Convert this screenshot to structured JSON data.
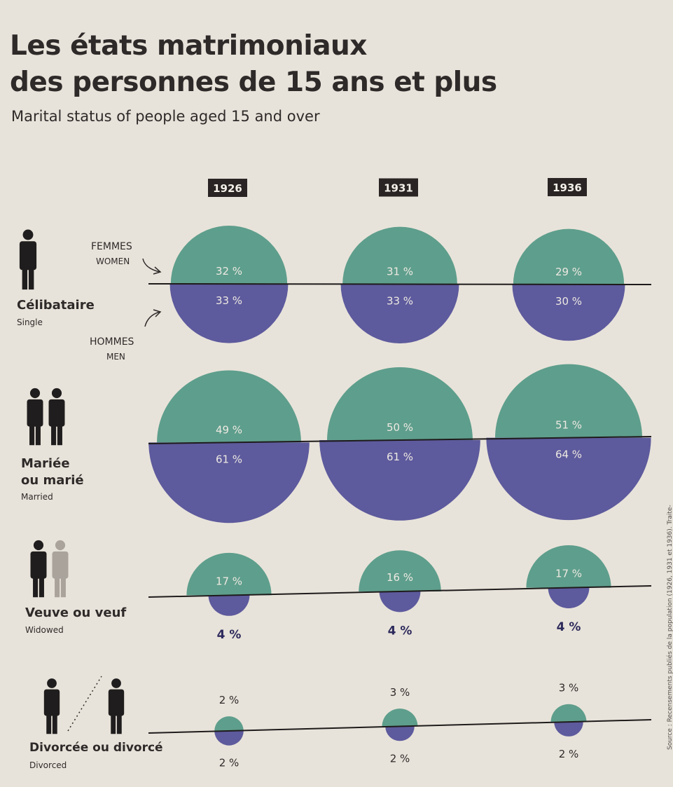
{
  "title_line1": "Les états matrimoniaux",
  "title_line2": "des personnes de 15 ans et plus",
  "subtitle": "Marital status of people aged 15 and over",
  "source": "Source : Recensements publiés de la population (1926, 1931 et 1936). Traite-",
  "legend": {
    "women_fr": "FEMMES",
    "women_en": "WOMEN",
    "men_fr": "HOMMES",
    "men_en": "MEN"
  },
  "colors": {
    "women": "#5e9e8c",
    "men": "#5d5a9d",
    "figure": "#1f1d1d",
    "figure_light": "#a9a39c",
    "label_light": "#ede9e2",
    "label_dark": "#2d2a5c"
  },
  "icons": {
    "single": "person-icon",
    "married": "couple-icon",
    "widowed": "widowed-couple-icon",
    "divorced": "divorced-couple-icon"
  },
  "chart_data": {
    "type": "proportional-circles",
    "years": [
      "1926",
      "1931",
      "1936"
    ],
    "categories": [
      {
        "key": "single",
        "label_fr": "Célibataire",
        "label_en": "Single",
        "women": [
          32,
          31,
          29
        ],
        "men": [
          33,
          33,
          30
        ],
        "women_labels": [
          "32 %",
          "31 %",
          "29 %"
        ],
        "men_labels": [
          "33 %",
          "33 %",
          "30 %"
        ]
      },
      {
        "key": "married",
        "label_fr_line1": "Mariée",
        "label_fr_line2": "ou marié",
        "label_en": "Married",
        "women": [
          49,
          50,
          51
        ],
        "men": [
          61,
          61,
          64
        ],
        "women_labels": [
          "49 %",
          "50 %",
          "51 %"
        ],
        "men_labels": [
          "61 %",
          "61 %",
          "64 %"
        ]
      },
      {
        "key": "widowed",
        "label_fr": "Veuve ou veuf",
        "label_en": "Widowed",
        "women": [
          17,
          16,
          17
        ],
        "men": [
          4,
          4,
          4
        ],
        "women_labels": [
          "17 %",
          "16 %",
          "17 %"
        ],
        "men_labels": [
          "4 %",
          "4 %",
          "4 %"
        ]
      },
      {
        "key": "divorced",
        "label_fr": "Divorcée ou divorcé",
        "label_en": "Divorced",
        "women": [
          2,
          3,
          3
        ],
        "men": [
          2,
          2,
          2
        ],
        "women_labels": [
          "2 %",
          "3 %",
          "3 %"
        ],
        "men_labels": [
          "2 %",
          "2 %",
          "2 %"
        ]
      }
    ]
  }
}
